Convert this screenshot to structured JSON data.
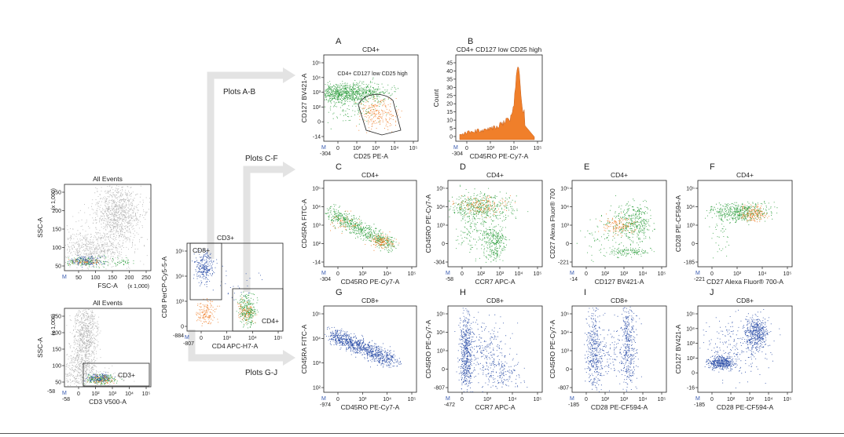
{
  "colors": {
    "gray": "#b4b4b4",
    "green": "#2e9e3e",
    "orange": "#f07f2a",
    "blue": "#2d4fa8",
    "arrow": "#e3e3e3"
  },
  "flows": [
    {
      "id": "ab",
      "label": "Plots A-B"
    },
    {
      "id": "cf",
      "label": "Plots C-F"
    },
    {
      "id": "gj",
      "label": "Plots G-J"
    }
  ],
  "panels": {
    "p1": {
      "title": "All Events",
      "scale_note": "(x 1,000)",
      "xnote": "(x 1,000)",
      "ylabel": "SSC-A",
      "xlabel": "FSC-A",
      "yticks": [
        "250",
        "200",
        "150",
        "100",
        "50"
      ],
      "xticks": [
        "50",
        "100",
        "150",
        "200",
        "250"
      ]
    },
    "p2": {
      "title": "All Events",
      "scale_note": "(x 1,000)",
      "ylabel": "SSC-A",
      "xlabel": "CD3 V500-A",
      "yticks": [
        "250",
        "200",
        "150",
        "100",
        "50"
      ],
      "xticks": [
        "0",
        "10²",
        "10³",
        "10⁴",
        "10⁵"
      ],
      "xmin": "-58",
      "gate": "CD3+"
    },
    "p3": {
      "ylabel": "CD8 PerCP-Cy5-5-A",
      "xlabel": "CD4 APC-H7-A",
      "xticks": [
        "0",
        "10³",
        "10⁴",
        "10⁵"
      ],
      "yticks": [
        "10⁵",
        "10⁴",
        "10³",
        "0"
      ],
      "ymin": "-884",
      "xmin": "-807",
      "gates": [
        "CD3+",
        "CD8+",
        "CD4+"
      ]
    },
    "A": {
      "letter": "A",
      "title": "CD4+",
      "ylabel": "CD127 BV421-A",
      "xlabel": "CD25 PE-A",
      "yticks": [
        "10⁵",
        "10⁴",
        "10³",
        "10²",
        "0",
        "-14"
      ],
      "xticks": [
        "0",
        "10²",
        "10³",
        "10⁴",
        "10⁵"
      ],
      "xmin": "-304",
      "gate": "CD4+ CD127 low CD25 high"
    },
    "B": {
      "letter": "B",
      "title": "CD4+ CD127 low CD25 high",
      "ylabel": "Count",
      "xlabel": "CD45RO PE-Cy7-A",
      "yticks": [
        "45",
        "40",
        "35",
        "30",
        "25",
        "20",
        "15",
        "10",
        "5",
        "0"
      ],
      "xticks": [
        "0",
        "10³",
        "10⁴",
        "10⁵"
      ],
      "xmin": "-304"
    },
    "C": {
      "letter": "C",
      "title": "CD4+",
      "ylabel": "CD45RA FITC-A",
      "xlabel": "CD45RO PE-Cy7-A",
      "yticks": [
        "10⁵",
        "10⁴",
        "10³",
        "10²",
        "-14"
      ],
      "xticks": [
        "0",
        "10³",
        "10⁴",
        "10⁵"
      ],
      "xmin": "-304"
    },
    "D": {
      "letter": "D",
      "title": "CD4+",
      "ylabel": "CD45RO PE-Cy7-A",
      "xlabel": "CCR7 APC-A",
      "yticks": [
        "10⁵",
        "10⁴",
        "10³",
        "0",
        "-304"
      ],
      "xticks": [
        "0",
        "10²",
        "10³",
        "10⁴",
        "10⁵"
      ],
      "xmin": "-58"
    },
    "E": {
      "letter": "E",
      "title": "CD4+",
      "ylabel": "CD27 Alexa Fluor® 700",
      "xlabel": "CD127 BV421-A",
      "yticks": [
        "10⁵",
        "10⁴",
        "10³",
        "0",
        "-221"
      ],
      "xticks": [
        "0",
        "10²",
        "10³",
        "10⁴",
        "10⁵"
      ],
      "xmin": "-14"
    },
    "F": {
      "letter": "F",
      "title": "CD4+",
      "ylabel": "CD28 PE-CF594-A",
      "xlabel": "CD27 Alexa Fluor® 700-A",
      "yticks": [
        "10⁵",
        "10⁴",
        "10³",
        "0",
        "-185"
      ],
      "xticks": [
        "0",
        "10³",
        "10⁴",
        "10⁵"
      ],
      "xmin": "-221"
    },
    "G": {
      "letter": "G",
      "title": "CD8+",
      "ylabel": "CD45RA FITC-A",
      "xlabel": "CD45RO PE-Cy7-A",
      "yticks": [
        "10⁵",
        "10⁴",
        "10³",
        "10²"
      ],
      "xticks": [
        "0",
        "10³",
        "10⁴",
        "10⁵"
      ],
      "xmin": "-974"
    },
    "H": {
      "letter": "H",
      "title": "CD8+",
      "ylabel": "CD45RO PE-Cy7-A",
      "xlabel": "CCR7 APC-A",
      "yticks": [
        "10⁵",
        "10⁴",
        "10³",
        "0",
        "-807"
      ],
      "xticks": [
        "0",
        "10³",
        "10⁴",
        "10⁵"
      ],
      "xmin": "-472"
    },
    "I": {
      "letter": "I",
      "title": "CD8+",
      "ylabel": "CD45RO PE-Cy7-A",
      "xlabel": "CD28 PE-CF594-A",
      "yticks": [
        "10⁵",
        "10⁴",
        "10³",
        "0",
        "-807"
      ],
      "xticks": [
        "0",
        "10²",
        "10³",
        "10⁴",
        "10⁵"
      ],
      "xmin": "-185"
    },
    "J": {
      "letter": "J",
      "title": "CD8+",
      "ylabel": "CD127 BV421-A",
      "xlabel": "CD28 PE-CF594-A",
      "yticks": [
        "10⁵",
        "10⁴",
        "10³",
        "10²",
        "0",
        "-16"
      ],
      "xticks": [
        "0",
        "10²",
        "10³",
        "10⁴",
        "10⁵"
      ],
      "xmin": "-185"
    }
  }
}
